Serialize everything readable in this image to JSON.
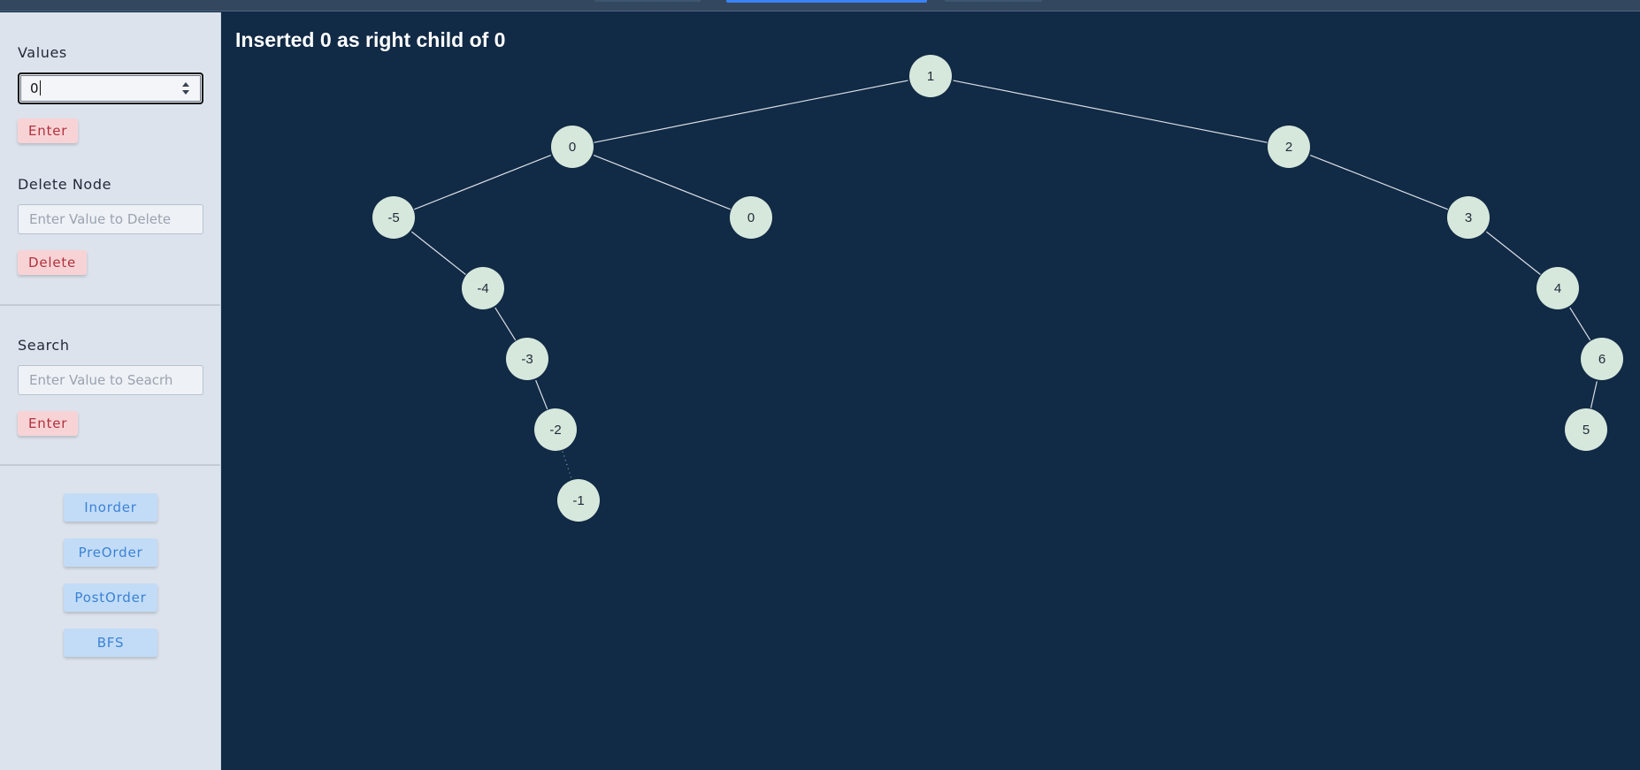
{
  "sidebar": {
    "values_label": "Values",
    "values_input": "0",
    "enter_label": "Enter",
    "delete_section_label": "Delete Node",
    "delete_placeholder": "Enter Value to Delete",
    "delete_button": "Delete",
    "search_section_label": "Search",
    "search_placeholder": "Enter Value to Seacrh",
    "search_button": "Enter",
    "traversals": [
      "Inorder",
      "PreOrder",
      "PostOrder",
      "BFS"
    ]
  },
  "status_message": "Inserted 0 as right child of 0",
  "colors": {
    "canvas_bg": "#112a45",
    "node_fill": "#d6e8dc",
    "edge": "#d9dee6",
    "accent_tab": "#3b82f6"
  },
  "tree": {
    "nodes": [
      {
        "id": "n1",
        "label": "1"
      },
      {
        "id": "n0",
        "label": "0"
      },
      {
        "id": "n2",
        "label": "2"
      },
      {
        "id": "nm5",
        "label": "-5"
      },
      {
        "id": "n0r",
        "label": "0"
      },
      {
        "id": "n3",
        "label": "3"
      },
      {
        "id": "nm4",
        "label": "-4"
      },
      {
        "id": "n4",
        "label": "4"
      },
      {
        "id": "nm3",
        "label": "-3"
      },
      {
        "id": "n6",
        "label": "6"
      },
      {
        "id": "nm2",
        "label": "-2"
      },
      {
        "id": "n5",
        "label": "5"
      },
      {
        "id": "nm1",
        "label": "-1"
      }
    ],
    "edges": [
      {
        "from": "n1",
        "to": "n0"
      },
      {
        "from": "n1",
        "to": "n2"
      },
      {
        "from": "n0",
        "to": "nm5"
      },
      {
        "from": "n0",
        "to": "n0r"
      },
      {
        "from": "n2",
        "to": "n3"
      },
      {
        "from": "nm5",
        "to": "nm4"
      },
      {
        "from": "n3",
        "to": "n4"
      },
      {
        "from": "nm4",
        "to": "nm3"
      },
      {
        "from": "n4",
        "to": "n6"
      },
      {
        "from": "nm3",
        "to": "nm2"
      },
      {
        "from": "n6",
        "to": "n5"
      },
      {
        "from": "nm2",
        "to": "nm1",
        "style": "dotted"
      }
    ]
  }
}
